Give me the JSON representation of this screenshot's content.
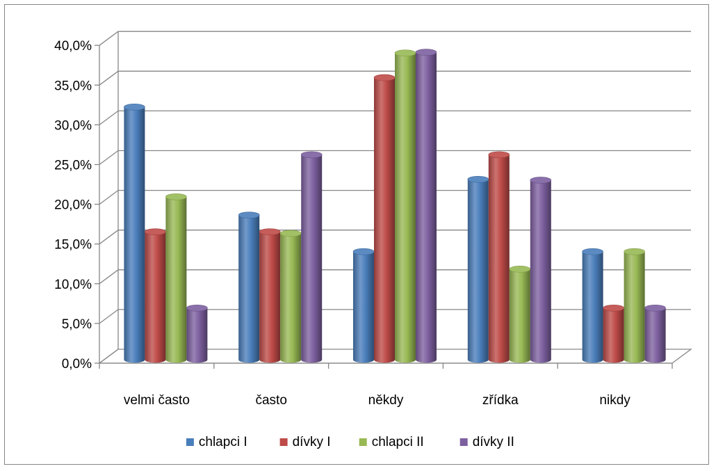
{
  "chart_data": {
    "type": "bar",
    "style": "3d-cylinder",
    "categories": [
      "velmi často",
      "často",
      "někdy",
      "zřídka",
      "nikdy"
    ],
    "series": [
      {
        "name": "chlapci I",
        "color": "#4a7ebb",
        "values": [
          31.8,
          18.2,
          13.6,
          22.7,
          13.6
        ]
      },
      {
        "name": "dívky I",
        "color": "#be4b48",
        "values": [
          16.1,
          16.1,
          35.5,
          25.8,
          6.5
        ]
      },
      {
        "name": "chlapci II",
        "color": "#98b954",
        "values": [
          20.5,
          15.9,
          38.6,
          11.4,
          13.6
        ]
      },
      {
        "name": "dívky II",
        "color": "#7d60a0",
        "values": [
          6.5,
          25.8,
          38.7,
          22.6,
          6.5
        ]
      }
    ],
    "yticks": [
      "0,0%",
      "5,0%",
      "10,0%",
      "15,0%",
      "20,0%",
      "25,0%",
      "30,0%",
      "35,0%",
      "40,0%"
    ],
    "ylim": [
      0,
      40
    ],
    "grid": true,
    "legend": "bottom"
  }
}
